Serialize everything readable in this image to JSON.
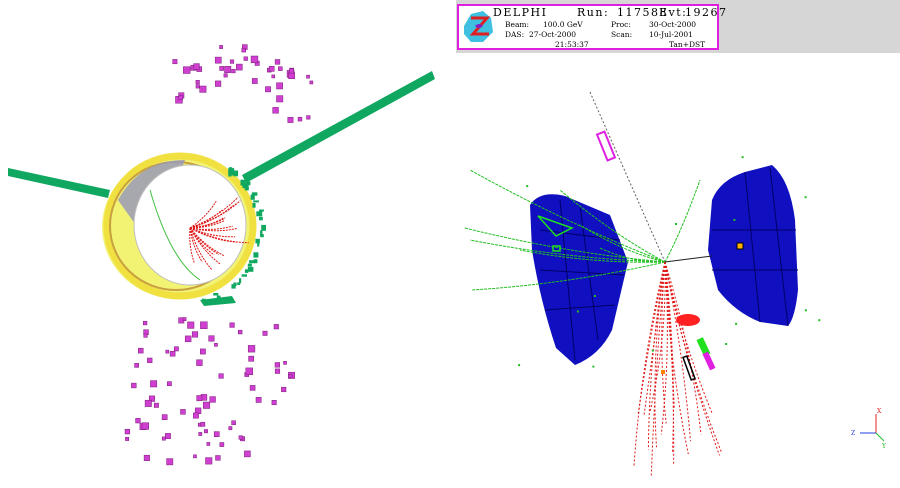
{
  "event_display": {
    "experiment": "DELPHI",
    "run_label": "Run:",
    "run_value": "117588",
    "evt_label": "Evt:",
    "evt_value": "19267",
    "beam_label": "Beam:",
    "beam_value": "100.0 GeV",
    "proc_label": "Proc:",
    "proc_value": "30-Oct-2000",
    "das_label": "DAS:",
    "das_value": "27-Oct-2000",
    "scan_label": "Scan:",
    "scan_value": "10-Jul-2001",
    "time_value": "21:53:37",
    "mode_value": "Tan+DST"
  },
  "axes": {
    "x_label": "X",
    "y_label": "Y",
    "z_label": "Z"
  },
  "colors": {
    "hcal_hits": "#d040d0",
    "calorimeter": "#10a860",
    "charged_tracks": "#e01818",
    "muon_tracks": "#20c020",
    "endcap": "#1010c0",
    "barrel_ring": "#f0e040",
    "info_border": "#e020e0",
    "info_bar": "#d6d6d6"
  },
  "icons": {
    "logo": "delphi-logo-icon",
    "axes": "axis-triad-icon"
  }
}
